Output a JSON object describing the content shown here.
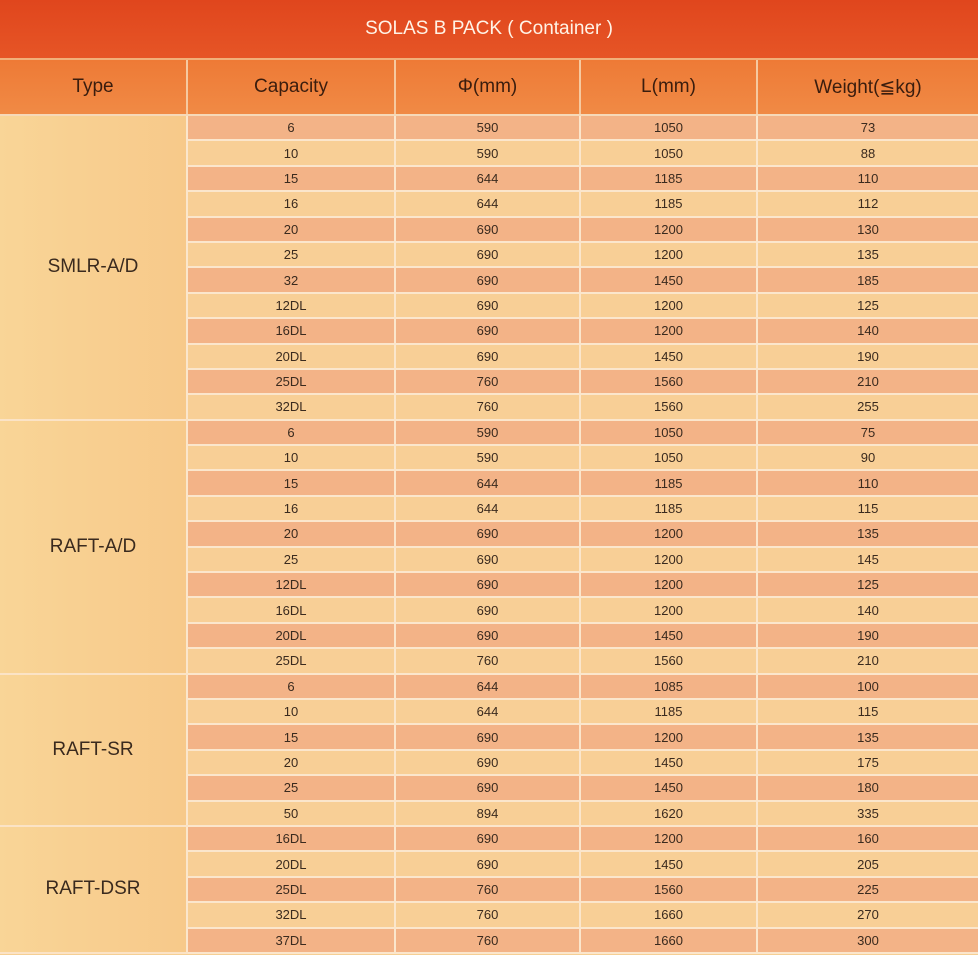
{
  "title": "SOLAS B PACK ( Container )",
  "headers": [
    "Type",
    "Capacity",
    "Φ(mm)",
    "L(mm)",
    "Weight(≦kg)"
  ],
  "colors": {
    "title_bar": "#e2491f",
    "header": "#ef7e3a",
    "row_dark": "#f3b387",
    "row_light": "#f8cf96"
  },
  "groups": [
    {
      "type": "SMLR-A/D",
      "rows": [
        [
          "6",
          "590",
          "1050",
          "73"
        ],
        [
          "10",
          "590",
          "1050",
          "88"
        ],
        [
          "15",
          "644",
          "1185",
          "110"
        ],
        [
          "16",
          "644",
          "1185",
          "112"
        ],
        [
          "20",
          "690",
          "1200",
          "130"
        ],
        [
          "25",
          "690",
          "1200",
          "135"
        ],
        [
          "32",
          "690",
          "1450",
          "185"
        ],
        [
          "12DL",
          "690",
          "1200",
          "125"
        ],
        [
          "16DL",
          "690",
          "1200",
          "140"
        ],
        [
          "20DL",
          "690",
          "1450",
          "190"
        ],
        [
          "25DL",
          "760",
          "1560",
          "210"
        ],
        [
          "32DL",
          "760",
          "1560",
          "255"
        ]
      ]
    },
    {
      "type": "RAFT-A/D",
      "rows": [
        [
          "6",
          "590",
          "1050",
          "75"
        ],
        [
          "10",
          "590",
          "1050",
          "90"
        ],
        [
          "15",
          "644",
          "1185",
          "110"
        ],
        [
          "16",
          "644",
          "1185",
          "115"
        ],
        [
          "20",
          "690",
          "1200",
          "135"
        ],
        [
          "25",
          "690",
          "1200",
          "145"
        ],
        [
          "12DL",
          "690",
          "1200",
          "125"
        ],
        [
          "16DL",
          "690",
          "1200",
          "140"
        ],
        [
          "20DL",
          "690",
          "1450",
          "190"
        ],
        [
          "25DL",
          "760",
          "1560",
          "210"
        ]
      ]
    },
    {
      "type": "RAFT-SR",
      "rows": [
        [
          "6",
          "644",
          "1085",
          "100"
        ],
        [
          "10",
          "644",
          "1185",
          "115"
        ],
        [
          "15",
          "690",
          "1200",
          "135"
        ],
        [
          "20",
          "690",
          "1450",
          "175"
        ],
        [
          "25",
          "690",
          "1450",
          "180"
        ],
        [
          "50",
          "894",
          "1620",
          "335"
        ]
      ]
    },
    {
      "type": "RAFT-DSR",
      "rows": [
        [
          "16DL",
          "690",
          "1200",
          "160"
        ],
        [
          "20DL",
          "690",
          "1450",
          "205"
        ],
        [
          "25DL",
          "760",
          "1560",
          "225"
        ],
        [
          "32DL",
          "760",
          "1660",
          "270"
        ],
        [
          "37DL",
          "760",
          "1660",
          "300"
        ]
      ]
    }
  ]
}
